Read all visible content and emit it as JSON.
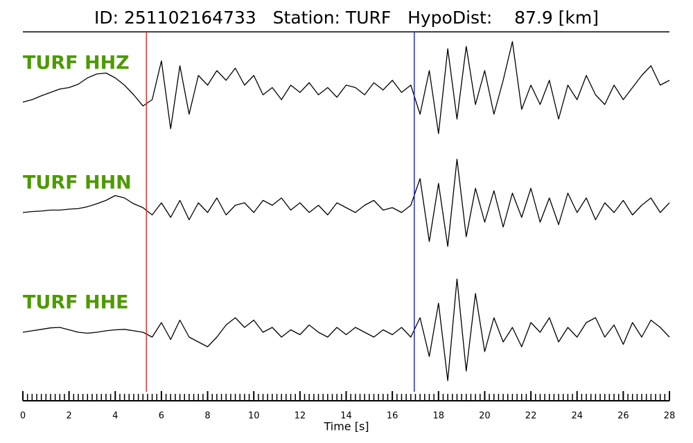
{
  "chart_data": {
    "type": "seismogram",
    "title": "ID: 251102164733   Station: TURF   HypoDist:    87.9 [km]",
    "xlabel": "Time [s]",
    "xlim": [
      0,
      28
    ],
    "xticks": [
      0,
      2,
      4,
      6,
      8,
      10,
      12,
      14,
      16,
      18,
      20,
      22,
      24,
      26,
      28
    ],
    "minor_tick_interval": 0.2,
    "x": [
      0,
      0.4,
      0.8,
      1.2,
      1.6,
      2,
      2.4,
      2.8,
      3.2,
      3.6,
      4,
      4.4,
      4.8,
      5.2,
      5.6,
      6,
      6.4,
      6.8,
      7.2,
      7.6,
      8,
      8.4,
      8.8,
      9.2,
      9.6,
      10,
      10.4,
      10.8,
      11.2,
      11.6,
      12,
      12.4,
      12.8,
      13.2,
      13.6,
      14,
      14.4,
      14.8,
      15.2,
      15.6,
      16,
      16.4,
      16.8,
      17.2,
      17.6,
      18,
      18.4,
      18.8,
      19.2,
      19.6,
      20,
      20.4,
      20.8,
      21.2,
      21.6,
      22,
      22.4,
      22.8,
      23.2,
      23.6,
      24,
      24.4,
      24.8,
      25.2,
      25.6,
      26,
      26.4,
      26.8,
      27.2,
      27.6,
      28
    ],
    "picks": [
      {
        "time": 5.35,
        "color": "#e03030"
      },
      {
        "time": 16.95,
        "color": "#2030c0"
      }
    ],
    "series": [
      {
        "name": "TURF HHZ",
        "color": "#000000",
        "values": [
          -0.25,
          -0.2,
          -0.12,
          -0.05,
          0.02,
          0.05,
          0.12,
          0.25,
          0.33,
          0.35,
          0.25,
          0.1,
          -0.1,
          -0.33,
          -0.2,
          0.6,
          -0.8,
          0.5,
          -0.5,
          0.3,
          0.1,
          0.4,
          0.2,
          0.45,
          0.1,
          0.3,
          -0.1,
          0.05,
          -0.2,
          0.1,
          -0.05,
          0.15,
          -0.1,
          0.05,
          -0.15,
          0.1,
          0.05,
          -0.1,
          0.15,
          0.0,
          0.2,
          -0.05,
          0.1,
          -0.5,
          0.4,
          -0.9,
          0.85,
          -0.6,
          0.9,
          -0.3,
          0.4,
          -0.5,
          0.2,
          1.0,
          -0.4,
          0.1,
          -0.3,
          0.2,
          -0.6,
          0.1,
          -0.2,
          0.3,
          -0.1,
          -0.3,
          0.1,
          -0.2,
          0.05,
          0.3,
          0.5,
          0.1,
          0.2
        ]
      },
      {
        "name": "TURF HHN",
        "color": "#000000",
        "values": [
          -0.1,
          -0.08,
          -0.07,
          -0.05,
          -0.05,
          -0.03,
          -0.02,
          0.02,
          0.08,
          0.15,
          0.25,
          0.2,
          0.08,
          0.0,
          -0.15,
          0.1,
          -0.2,
          0.15,
          -0.25,
          0.1,
          -0.1,
          0.2,
          -0.15,
          0.05,
          0.1,
          -0.1,
          0.15,
          0.05,
          0.2,
          -0.05,
          0.1,
          -0.1,
          0.05,
          -0.15,
          0.1,
          0.0,
          -0.1,
          0.05,
          0.15,
          -0.05,
          0.0,
          -0.1,
          0.05,
          0.6,
          -0.7,
          0.5,
          -0.8,
          1.0,
          -0.6,
          0.4,
          -0.3,
          0.35,
          -0.4,
          0.3,
          -0.2,
          0.4,
          -0.3,
          0.2,
          -0.35,
          0.3,
          -0.1,
          0.2,
          -0.25,
          0.1,
          -0.1,
          0.15,
          -0.15,
          0.05,
          0.2,
          -0.1,
          0.1
        ]
      },
      {
        "name": "TURF HHE",
        "color": "#000000",
        "values": [
          0.0,
          0.03,
          0.06,
          0.09,
          0.1,
          0.05,
          0.0,
          -0.02,
          0.0,
          0.03,
          0.05,
          0.06,
          0.03,
          0.0,
          -0.1,
          0.2,
          -0.15,
          0.25,
          -0.1,
          -0.2,
          -0.3,
          -0.1,
          0.15,
          0.3,
          0.1,
          0.25,
          0.0,
          0.1,
          -0.1,
          0.05,
          -0.05,
          0.15,
          0.0,
          -0.1,
          0.1,
          -0.05,
          0.1,
          0.0,
          -0.1,
          0.05,
          -0.05,
          0.1,
          -0.1,
          0.3,
          -0.5,
          0.6,
          -1.0,
          1.1,
          -0.8,
          0.8,
          -0.4,
          0.3,
          -0.2,
          0.1,
          -0.3,
          0.2,
          0.0,
          0.3,
          -0.2,
          0.1,
          -0.1,
          0.2,
          0.3,
          -0.1,
          0.15,
          -0.25,
          0.2,
          -0.1,
          0.25,
          0.1,
          -0.1
        ]
      }
    ]
  }
}
